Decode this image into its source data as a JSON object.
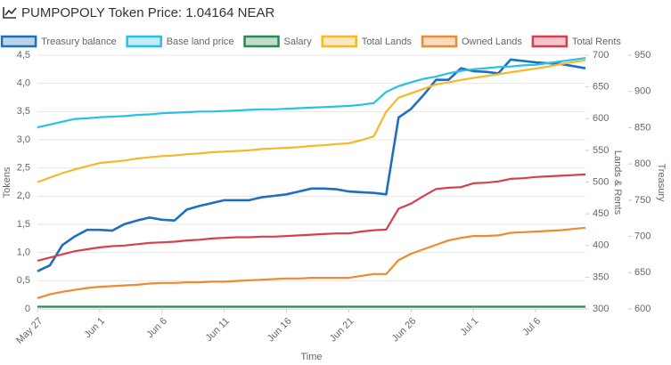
{
  "chart_data": {
    "type": "line",
    "title": "PUMPOPOLY Token Price: 1.04164 NEAR",
    "x_label": "Time",
    "y_label": "Tokens",
    "y2_label": "Lands & Rents",
    "y3_label": "Treasury",
    "grid": true,
    "legend": "top",
    "categories": [
      "May 27",
      null,
      null,
      null,
      null,
      "Jun 1",
      null,
      null,
      null,
      null,
      "Jun 6",
      null,
      null,
      null,
      null,
      "Jun 11",
      null,
      null,
      null,
      null,
      "Jun 16",
      null,
      null,
      null,
      null,
      "Jun 21",
      null,
      null,
      null,
      null,
      "Jun 26",
      null,
      null,
      null,
      null,
      "Jul 1",
      null,
      null,
      null,
      null,
      "Jul 6",
      null,
      null,
      null,
      null
    ],
    "series": [
      {
        "name": "Treasury balance",
        "color": "#1f6fc1",
        "axis": "y3",
        "values": [
          652,
          660,
          688,
          700,
          709,
          709,
          708,
          717,
          722,
          726,
          723,
          722,
          737,
          742,
          746,
          750,
          750,
          750,
          754,
          756,
          758,
          762,
          766,
          766,
          765,
          762,
          761,
          760,
          758,
          864,
          876,
          895,
          916,
          916,
          932,
          928,
          927,
          925,
          944,
          942,
          940,
          939,
          938,
          935,
          932
        ]
      },
      {
        "name": "Base land price",
        "color": "#29c0e8",
        "axis": "y",
        "values": [
          3.22,
          3.27,
          3.32,
          3.37,
          3.38,
          3.4,
          3.41,
          3.42,
          3.44,
          3.45,
          3.47,
          3.48,
          3.49,
          3.5,
          3.5,
          3.51,
          3.52,
          3.53,
          3.54,
          3.54,
          3.55,
          3.56,
          3.57,
          3.58,
          3.59,
          3.6,
          3.62,
          3.65,
          3.85,
          3.95,
          4.02,
          4.08,
          4.12,
          4.18,
          4.22,
          4.25,
          4.27,
          4.29,
          4.3,
          4.32,
          4.33,
          4.36,
          4.39,
          4.42,
          4.45
        ]
      },
      {
        "name": "Salary",
        "color": "#2a8a55",
        "axis": "y",
        "values": [
          0.04,
          0.04,
          0.04,
          0.04,
          0.04,
          0.04,
          0.04,
          0.04,
          0.04,
          0.04,
          0.04,
          0.04,
          0.04,
          0.04,
          0.04,
          0.04,
          0.04,
          0.04,
          0.04,
          0.04,
          0.04,
          0.04,
          0.04,
          0.04,
          0.04,
          0.04,
          0.04,
          0.04,
          0.04,
          0.04,
          0.04,
          0.04,
          0.04,
          0.04,
          0.04,
          0.04,
          0.04,
          0.04,
          0.04,
          0.04,
          0.04,
          0.04,
          0.04,
          0.04,
          0.04
        ]
      },
      {
        "name": "Total Lands",
        "color": "#f5b82a",
        "axis": "y2",
        "values": [
          500,
          507,
          514,
          520,
          525,
          530,
          532,
          534,
          537,
          539,
          541,
          542,
          544,
          545,
          547,
          548,
          549,
          550,
          552,
          553,
          554,
          555,
          557,
          558,
          560,
          561,
          566,
          572,
          611,
          633,
          640,
          647,
          654,
          657,
          661,
          664,
          667,
          670,
          673,
          676,
          679,
          682,
          686,
          689,
          692
        ]
      },
      {
        "name": "Owned Lands",
        "color": "#f08a30",
        "axis": "y2",
        "values": [
          317,
          323,
          327,
          330,
          333,
          335,
          336,
          337,
          338,
          340,
          341,
          341,
          342,
          342,
          343,
          343,
          344,
          345,
          346,
          347,
          348,
          348,
          349,
          349,
          349,
          349,
          352,
          355,
          355,
          377,
          387,
          394,
          401,
          408,
          412,
          415,
          415,
          416,
          420,
          421,
          422,
          423,
          424,
          426,
          428
        ]
      },
      {
        "name": "Total Rents",
        "color": "#d6404e",
        "axis": "y2",
        "values": [
          376,
          381,
          386,
          391,
          394,
          397,
          399,
          400,
          402,
          404,
          405,
          406,
          408,
          409,
          411,
          412,
          413,
          413,
          414,
          414,
          415,
          416,
          417,
          418,
          419,
          419,
          422,
          424,
          425,
          458,
          466,
          478,
          489,
          491,
          492,
          498,
          499,
          501,
          505,
          506,
          508,
          509,
          510,
          511,
          512
        ]
      }
    ],
    "ylim": [
      0,
      4.5
    ],
    "yticks": [
      0,
      {
        "value": 0.5,
        "label": "0,5"
      },
      {
        "value": 1,
        "label": "1,0"
      },
      {
        "value": 1.5,
        "label": "1,5"
      },
      {
        "value": 2,
        "label": "2,0"
      },
      {
        "value": 2.5,
        "label": "2,5"
      },
      {
        "value": 3,
        "label": "3,0"
      },
      {
        "value": 3.5,
        "label": "3,5"
      },
      {
        "value": 4,
        "label": "4,0"
      },
      {
        "value": 4.5,
        "label": "4,5"
      }
    ],
    "y2lim": [
      300,
      700
    ],
    "y2ticks": [
      300,
      350,
      400,
      450,
      500,
      550,
      600,
      650,
      700
    ],
    "y3lim": [
      600,
      950
    ],
    "y3ticks": [
      600,
      650,
      700,
      750,
      800,
      850,
      900,
      950
    ]
  }
}
